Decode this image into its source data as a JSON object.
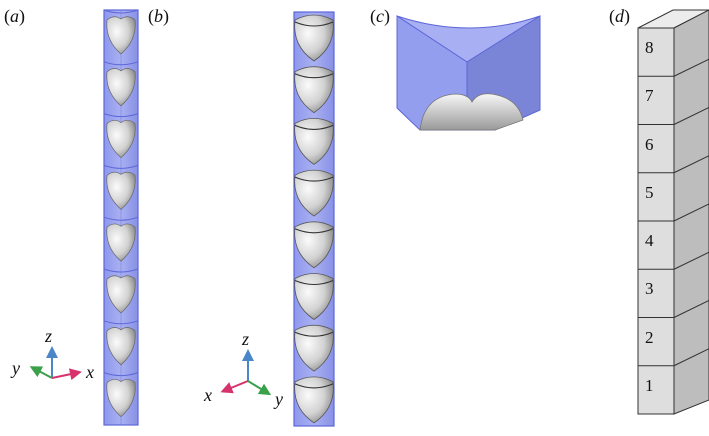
{
  "panels": [
    {
      "id": "a",
      "label_open": "(",
      "label_letter": "a",
      "label_close": ")"
    },
    {
      "id": "b",
      "label_open": "(",
      "label_letter": "b",
      "label_close": ")"
    },
    {
      "id": "c",
      "label_open": "(",
      "label_letter": "c",
      "label_close": ")"
    },
    {
      "id": "d",
      "label_open": "(",
      "label_letter": "d",
      "label_close": ")"
    }
  ],
  "axes_a": {
    "z": "z",
    "y": "y",
    "x": "x"
  },
  "axes_b": {
    "z": "z",
    "x": "x",
    "y": "y"
  },
  "stack_numbers": [
    "8",
    "7",
    "6",
    "5",
    "4",
    "3",
    "2",
    "1"
  ],
  "colors": {
    "column_fill": "#9aa3ee",
    "column_edge": "#5d67d8",
    "sphere_light": "#f4f4f4",
    "sphere_dark": "#8a8a8a",
    "block_fill": "#dcdcdc",
    "block_side": "#b9b9b9",
    "axis_z": "#4a86c8",
    "axis_x": "#d6336c",
    "axis_y": "#3aa04a"
  }
}
